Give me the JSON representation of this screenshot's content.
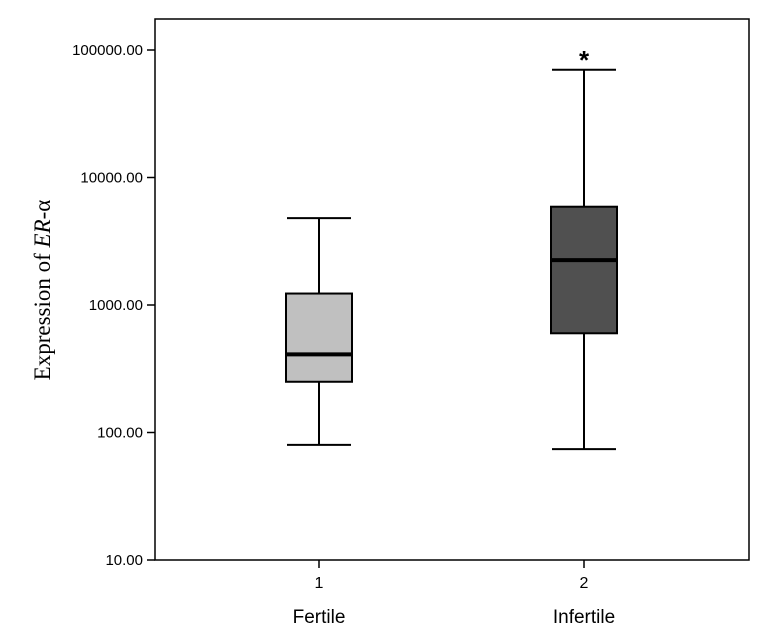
{
  "chart_data": {
    "type": "box",
    "ylabel": "Expression of ER-α",
    "ylabel_parts": [
      "Expression of ",
      "ER",
      "-α"
    ],
    "yscale": "log",
    "ylim": [
      10,
      150000
    ],
    "yticks": [
      10,
      100,
      1000,
      10000,
      100000
    ],
    "ytick_labels": [
      "10.00",
      "100.00",
      "1000.00",
      "10000.00",
      "100000.00"
    ],
    "categories": [
      "1",
      "2"
    ],
    "group_labels": [
      "Fertile",
      "Infertile"
    ],
    "boxes": [
      {
        "whisker_low": 80,
        "q1": 250,
        "median": 410,
        "q3": 1230,
        "whisker_high": 4800,
        "color": "#c0c0c0",
        "outliers": []
      },
      {
        "whisker_low": 74,
        "q1": 600,
        "median": 2250,
        "q3": 5900,
        "whisker_high": 70000,
        "color": "#505050",
        "outliers": [
          {
            "value": 95000,
            "symbol": "*"
          }
        ]
      }
    ],
    "grid": false,
    "legend": "none"
  }
}
